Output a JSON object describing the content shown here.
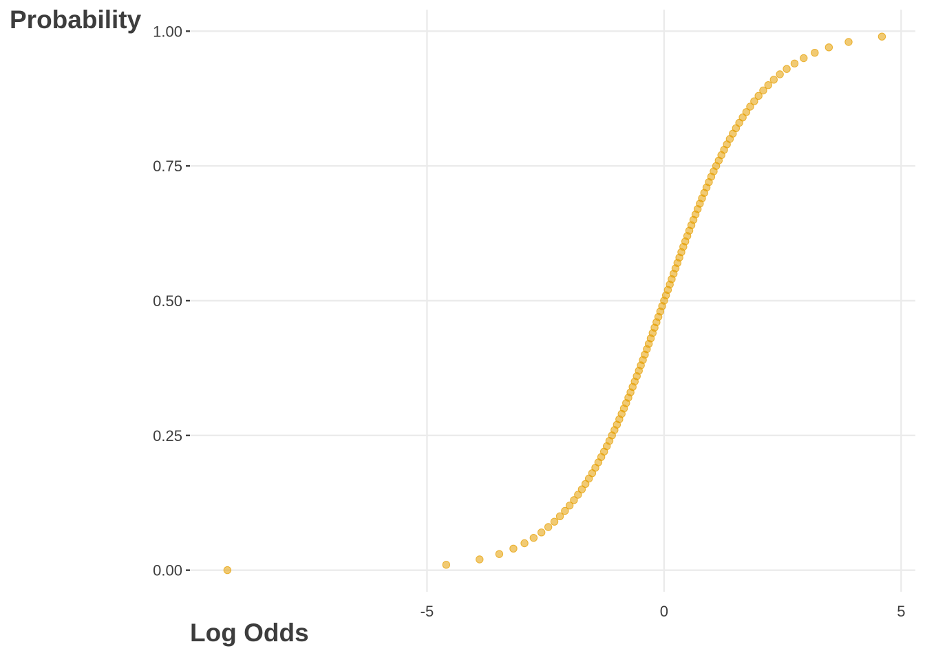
{
  "chart_data": {
    "type": "scatter",
    "title": "",
    "xlabel": "Log Odds",
    "ylabel": "Probability",
    "xlim": [
      -10,
      5.3
    ],
    "ylim": [
      -0.04,
      1.04
    ],
    "x_ticks": [
      {
        "value": -5,
        "label": "-5"
      },
      {
        "value": 0,
        "label": "0"
      },
      {
        "value": 5,
        "label": "5"
      }
    ],
    "y_ticks": [
      {
        "value": 0,
        "label": "0.00"
      },
      {
        "value": 0.25,
        "label": "0.25"
      },
      {
        "value": 0.5,
        "label": "0.50"
      },
      {
        "value": 0.75,
        "label": "0.75"
      },
      {
        "value": 1,
        "label": "1.00"
      }
    ],
    "grid": true,
    "point_color": "#E69F00",
    "point_opacity": 0.55,
    "p_min": 0.0001,
    "p_steps_from": 0.01,
    "p_steps_to": 0.99,
    "p_step": 0.01
  }
}
